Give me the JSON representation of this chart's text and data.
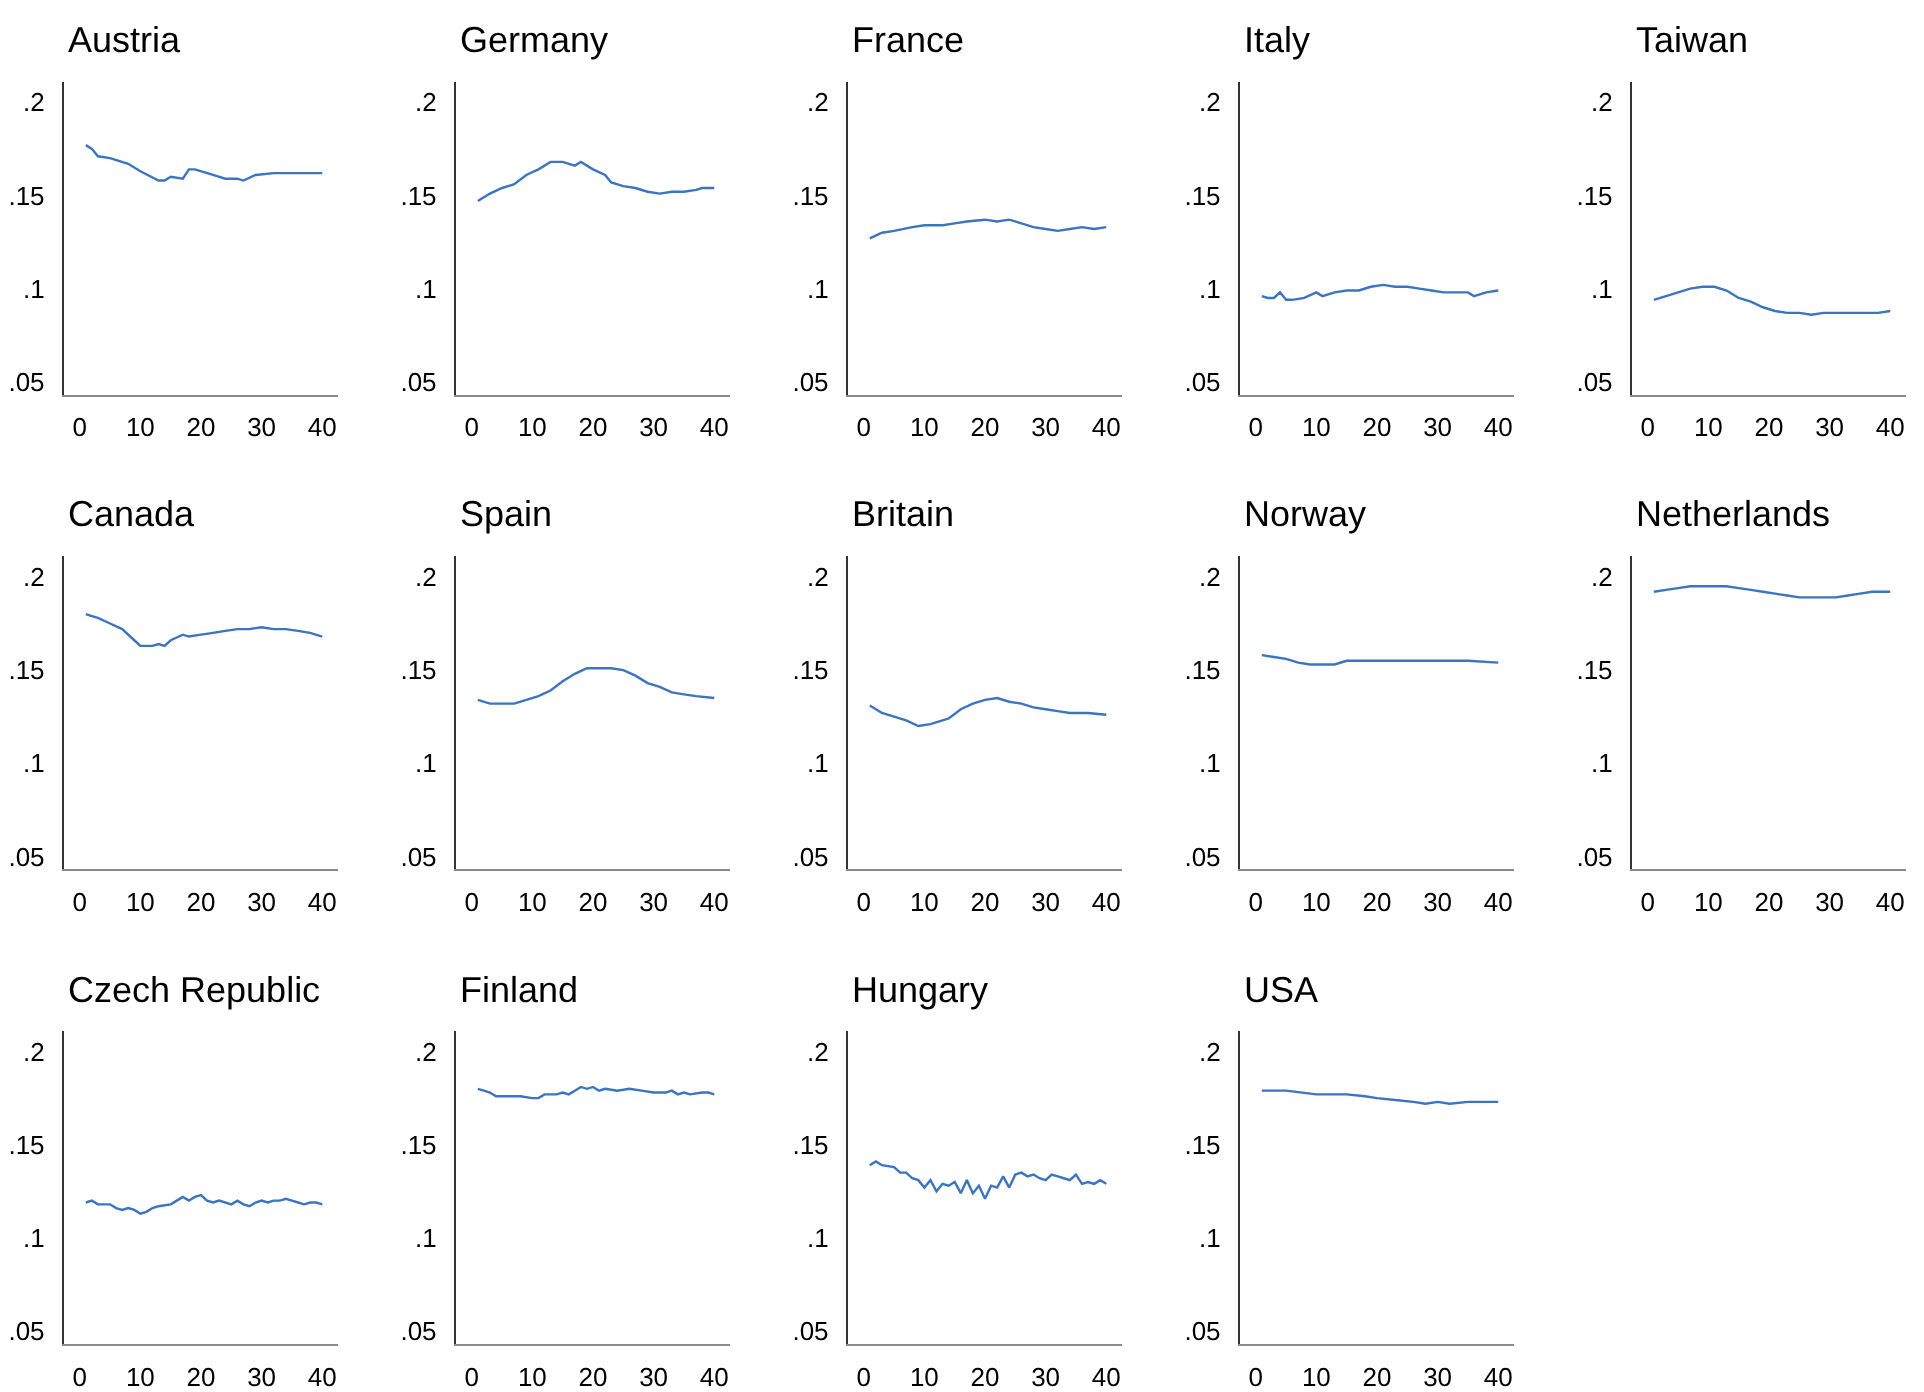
{
  "chart_data": [
    {
      "type": "line",
      "title": "Austria",
      "x": [
        1,
        2,
        3,
        5,
        8,
        10,
        13,
        14,
        15,
        17,
        18,
        19,
        22,
        24,
        26,
        27,
        29,
        32,
        35,
        38,
        40
      ],
      "values": [
        0.177,
        0.175,
        0.171,
        0.17,
        0.167,
        0.163,
        0.158,
        0.158,
        0.16,
        0.159,
        0.164,
        0.164,
        0.161,
        0.159,
        0.159,
        0.158,
        0.161,
        0.162,
        0.162,
        0.162,
        0.162
      ],
      "color": "#3b74c0",
      "xlim": [
        -2.6,
        42.6
      ],
      "ylim": [
        0.043,
        0.211
      ],
      "xticks": [
        0,
        10,
        20,
        30,
        40
      ],
      "yticks": [
        {
          "value": 0.05,
          "label": ".05"
        },
        {
          "value": 0.1,
          "label": ".1"
        },
        {
          "value": 0.15,
          "label": ".15"
        },
        {
          "value": 0.2,
          "label": ".2"
        }
      ]
    },
    {
      "type": "line",
      "title": "Germany",
      "x": [
        1,
        3,
        5,
        7,
        9,
        11,
        13,
        15,
        17,
        18,
        20,
        22,
        23,
        25,
        27,
        29,
        31,
        33,
        35,
        37,
        38,
        40
      ],
      "values": [
        0.147,
        0.151,
        0.154,
        0.156,
        0.161,
        0.164,
        0.168,
        0.168,
        0.166,
        0.168,
        0.164,
        0.161,
        0.157,
        0.155,
        0.154,
        0.152,
        0.151,
        0.152,
        0.152,
        0.153,
        0.154,
        0.154
      ],
      "color": "#3b74c0",
      "xlim": [
        -2.6,
        42.6
      ],
      "ylim": [
        0.043,
        0.211
      ],
      "xticks": [
        0,
        10,
        20,
        30,
        40
      ],
      "yticks": [
        {
          "value": 0.05,
          "label": ".05"
        },
        {
          "value": 0.1,
          "label": ".1"
        },
        {
          "value": 0.15,
          "label": ".15"
        },
        {
          "value": 0.2,
          "label": ".2"
        }
      ]
    },
    {
      "type": "line",
      "title": "France",
      "x": [
        1,
        3,
        5,
        8,
        10,
        13,
        15,
        17,
        20,
        22,
        24,
        26,
        28,
        30,
        32,
        34,
        36,
        38,
        40
      ],
      "values": [
        0.127,
        0.13,
        0.131,
        0.133,
        0.134,
        0.134,
        0.135,
        0.136,
        0.137,
        0.136,
        0.137,
        0.135,
        0.133,
        0.132,
        0.131,
        0.132,
        0.133,
        0.132,
        0.133
      ],
      "color": "#3b74c0",
      "xlim": [
        -2.6,
        42.6
      ],
      "ylim": [
        0.043,
        0.211
      ],
      "xticks": [
        0,
        10,
        20,
        30,
        40
      ],
      "yticks": [
        {
          "value": 0.05,
          "label": ".05"
        },
        {
          "value": 0.1,
          "label": ".1"
        },
        {
          "value": 0.15,
          "label": ".15"
        },
        {
          "value": 0.2,
          "label": ".2"
        }
      ]
    },
    {
      "type": "line",
      "title": "Italy",
      "x": [
        1,
        2,
        3,
        4,
        5,
        6,
        8,
        10,
        11,
        13,
        15,
        17,
        19,
        21,
        23,
        25,
        27,
        29,
        31,
        33,
        35,
        36,
        38,
        40
      ],
      "values": [
        0.096,
        0.095,
        0.095,
        0.098,
        0.094,
        0.094,
        0.095,
        0.098,
        0.096,
        0.098,
        0.099,
        0.099,
        0.101,
        0.102,
        0.101,
        0.101,
        0.1,
        0.099,
        0.098,
        0.098,
        0.098,
        0.096,
        0.098,
        0.099
      ],
      "color": "#3b74c0",
      "xlim": [
        -2.6,
        42.6
      ],
      "ylim": [
        0.043,
        0.211
      ],
      "xticks": [
        0,
        10,
        20,
        30,
        40
      ],
      "yticks": [
        {
          "value": 0.05,
          "label": ".05"
        },
        {
          "value": 0.1,
          "label": ".1"
        },
        {
          "value": 0.15,
          "label": ".15"
        },
        {
          "value": 0.2,
          "label": ".2"
        }
      ]
    },
    {
      "type": "line",
      "title": "Taiwan",
      "x": [
        1,
        3,
        5,
        7,
        9,
        11,
        13,
        15,
        17,
        19,
        21,
        23,
        25,
        27,
        29,
        31,
        33,
        35,
        37,
        38,
        40
      ],
      "values": [
        0.094,
        0.096,
        0.098,
        0.1,
        0.101,
        0.101,
        0.099,
        0.095,
        0.093,
        0.09,
        0.088,
        0.087,
        0.087,
        0.086,
        0.087,
        0.087,
        0.087,
        0.087,
        0.087,
        0.087,
        0.088
      ],
      "color": "#3b74c0",
      "xlim": [
        -2.6,
        42.6
      ],
      "ylim": [
        0.043,
        0.211
      ],
      "xticks": [
        0,
        10,
        20,
        30,
        40
      ],
      "yticks": [
        {
          "value": 0.05,
          "label": ".05"
        },
        {
          "value": 0.1,
          "label": ".1"
        },
        {
          "value": 0.15,
          "label": ".15"
        },
        {
          "value": 0.2,
          "label": ".2"
        }
      ]
    },
    {
      "type": "line",
      "title": "Canada",
      "x": [
        1,
        2,
        3,
        5,
        7,
        9,
        10,
        12,
        13,
        14,
        15,
        17,
        18,
        20,
        22,
        24,
        26,
        28,
        30,
        32,
        34,
        36,
        38,
        40
      ],
      "values": [
        0.18,
        0.179,
        0.178,
        0.175,
        0.172,
        0.166,
        0.163,
        0.163,
        0.164,
        0.163,
        0.166,
        0.169,
        0.168,
        0.169,
        0.17,
        0.171,
        0.172,
        0.172,
        0.173,
        0.172,
        0.172,
        0.171,
        0.17,
        0.168
      ],
      "color": "#3b74c0",
      "xlim": [
        -2.6,
        42.6
      ],
      "ylim": [
        0.043,
        0.211
      ],
      "xticks": [
        0,
        10,
        20,
        30,
        40
      ],
      "yticks": [
        {
          "value": 0.05,
          "label": ".05"
        },
        {
          "value": 0.1,
          "label": ".1"
        },
        {
          "value": 0.15,
          "label": ".15"
        },
        {
          "value": 0.2,
          "label": ".2"
        }
      ]
    },
    {
      "type": "line",
      "title": "Spain",
      "x": [
        1,
        3,
        5,
        7,
        9,
        11,
        13,
        15,
        17,
        19,
        21,
        23,
        25,
        27,
        29,
        31,
        33,
        35,
        37,
        40
      ],
      "values": [
        0.134,
        0.132,
        0.132,
        0.132,
        0.134,
        0.136,
        0.139,
        0.144,
        0.148,
        0.151,
        0.151,
        0.151,
        0.15,
        0.147,
        0.143,
        0.141,
        0.138,
        0.137,
        0.136,
        0.135
      ],
      "color": "#3b74c0",
      "xlim": [
        -2.6,
        42.6
      ],
      "ylim": [
        0.043,
        0.211
      ],
      "xticks": [
        0,
        10,
        20,
        30,
        40
      ],
      "yticks": [
        {
          "value": 0.05,
          "label": ".05"
        },
        {
          "value": 0.1,
          "label": ".1"
        },
        {
          "value": 0.15,
          "label": ".15"
        },
        {
          "value": 0.2,
          "label": ".2"
        }
      ]
    },
    {
      "type": "line",
      "title": "Britain",
      "x": [
        1,
        3,
        5,
        7,
        9,
        11,
        13,
        14,
        16,
        18,
        20,
        22,
        24,
        26,
        28,
        30,
        32,
        34,
        37,
        40
      ],
      "values": [
        0.131,
        0.127,
        0.125,
        0.123,
        0.12,
        0.121,
        0.123,
        0.124,
        0.129,
        0.132,
        0.134,
        0.135,
        0.133,
        0.132,
        0.13,
        0.129,
        0.128,
        0.127,
        0.127,
        0.126
      ],
      "color": "#3b74c0",
      "xlim": [
        -2.6,
        42.6
      ],
      "ylim": [
        0.043,
        0.211
      ],
      "xticks": [
        0,
        10,
        20,
        30,
        40
      ],
      "yticks": [
        {
          "value": 0.05,
          "label": ".05"
        },
        {
          "value": 0.1,
          "label": ".1"
        },
        {
          "value": 0.15,
          "label": ".15"
        },
        {
          "value": 0.2,
          "label": ".2"
        }
      ]
    },
    {
      "type": "line",
      "title": "Norway",
      "x": [
        1,
        3,
        5,
        7,
        9,
        11,
        13,
        15,
        17,
        20,
        25,
        30,
        35,
        40
      ],
      "values": [
        0.158,
        0.157,
        0.156,
        0.154,
        0.153,
        0.153,
        0.153,
        0.155,
        0.155,
        0.155,
        0.155,
        0.155,
        0.155,
        0.154
      ],
      "color": "#3b74c0",
      "xlim": [
        -2.6,
        42.6
      ],
      "ylim": [
        0.043,
        0.211
      ],
      "xticks": [
        0,
        10,
        20,
        30,
        40
      ],
      "yticks": [
        {
          "value": 0.05,
          "label": ".05"
        },
        {
          "value": 0.1,
          "label": ".1"
        },
        {
          "value": 0.15,
          "label": ".15"
        },
        {
          "value": 0.2,
          "label": ".2"
        }
      ]
    },
    {
      "type": "line",
      "title": "Netherlands",
      "x": [
        1,
        3,
        5,
        7,
        10,
        13,
        15,
        17,
        19,
        21,
        23,
        25,
        27,
        29,
        31,
        33,
        35,
        37,
        40
      ],
      "values": [
        0.192,
        0.193,
        0.194,
        0.195,
        0.195,
        0.195,
        0.194,
        0.193,
        0.192,
        0.191,
        0.19,
        0.189,
        0.189,
        0.189,
        0.189,
        0.19,
        0.191,
        0.192,
        0.192
      ],
      "color": "#3b74c0",
      "xlim": [
        -2.6,
        42.6
      ],
      "ylim": [
        0.043,
        0.211
      ],
      "xticks": [
        0,
        10,
        20,
        30,
        40
      ],
      "yticks": [
        {
          "value": 0.05,
          "label": ".05"
        },
        {
          "value": 0.1,
          "label": ".1"
        },
        {
          "value": 0.15,
          "label": ".15"
        },
        {
          "value": 0.2,
          "label": ".2"
        }
      ]
    },
    {
      "type": "line",
      "title": "Czech Republic",
      "x": [
        1,
        2,
        3,
        5,
        6,
        7,
        8,
        9,
        10,
        11,
        12,
        13,
        15,
        16,
        17,
        18,
        19,
        20,
        21,
        22,
        23,
        25,
        26,
        27,
        28,
        29,
        30,
        31,
        32,
        33,
        34,
        35,
        36,
        37,
        38,
        39,
        40
      ],
      "values": [
        0.119,
        0.12,
        0.118,
        0.118,
        0.116,
        0.115,
        0.116,
        0.115,
        0.113,
        0.114,
        0.116,
        0.117,
        0.118,
        0.12,
        0.122,
        0.12,
        0.122,
        0.123,
        0.12,
        0.119,
        0.12,
        0.118,
        0.12,
        0.118,
        0.117,
        0.119,
        0.12,
        0.119,
        0.12,
        0.12,
        0.121,
        0.12,
        0.119,
        0.118,
        0.119,
        0.119,
        0.118
      ],
      "color": "#3b74c0",
      "xlim": [
        -2.6,
        42.6
      ],
      "ylim": [
        0.043,
        0.211
      ],
      "xticks": [
        0,
        10,
        20,
        30,
        40
      ],
      "yticks": [
        {
          "value": 0.05,
          "label": ".05"
        },
        {
          "value": 0.1,
          "label": ".1"
        },
        {
          "value": 0.15,
          "label": ".15"
        },
        {
          "value": 0.2,
          "label": ".2"
        }
      ]
    },
    {
      "type": "line",
      "title": "Finland",
      "x": [
        1,
        2,
        3,
        4,
        6,
        8,
        10,
        11,
        12,
        14,
        15,
        16,
        17,
        18,
        19,
        20,
        21,
        22,
        24,
        26,
        28,
        30,
        32,
        33,
        34,
        35,
        36,
        38,
        39,
        40
      ],
      "values": [
        0.18,
        0.179,
        0.178,
        0.176,
        0.176,
        0.176,
        0.175,
        0.175,
        0.177,
        0.177,
        0.178,
        0.177,
        0.179,
        0.181,
        0.18,
        0.181,
        0.179,
        0.18,
        0.179,
        0.18,
        0.179,
        0.178,
        0.178,
        0.179,
        0.177,
        0.178,
        0.177,
        0.178,
        0.178,
        0.177
      ],
      "color": "#3b74c0",
      "xlim": [
        -2.6,
        42.6
      ],
      "ylim": [
        0.043,
        0.211
      ],
      "xticks": [
        0,
        10,
        20,
        30,
        40
      ],
      "yticks": [
        {
          "value": 0.05,
          "label": ".05"
        },
        {
          "value": 0.1,
          "label": ".1"
        },
        {
          "value": 0.15,
          "label": ".15"
        },
        {
          "value": 0.2,
          "label": ".2"
        }
      ]
    },
    {
      "type": "line",
      "title": "Hungary",
      "x": [
        1,
        2,
        3,
        5,
        6,
        7,
        8,
        9,
        10,
        11,
        12,
        13,
        14,
        15,
        16,
        17,
        18,
        19,
        20,
        21,
        22,
        23,
        24,
        25,
        26,
        27,
        28,
        29,
        30,
        31,
        32,
        33,
        34,
        35,
        36,
        37,
        38,
        39,
        40
      ],
      "values": [
        0.139,
        0.141,
        0.139,
        0.138,
        0.135,
        0.135,
        0.132,
        0.131,
        0.127,
        0.131,
        0.125,
        0.129,
        0.128,
        0.13,
        0.124,
        0.131,
        0.124,
        0.128,
        0.121,
        0.128,
        0.127,
        0.133,
        0.127,
        0.134,
        0.135,
        0.133,
        0.134,
        0.132,
        0.131,
        0.134,
        0.133,
        0.132,
        0.131,
        0.134,
        0.129,
        0.13,
        0.129,
        0.131,
        0.129
      ],
      "color": "#3b74c0",
      "xlim": [
        -2.6,
        42.6
      ],
      "ylim": [
        0.043,
        0.211
      ],
      "xticks": [
        0,
        10,
        20,
        30,
        40
      ],
      "yticks": [
        {
          "value": 0.05,
          "label": ".05"
        },
        {
          "value": 0.1,
          "label": ".1"
        },
        {
          "value": 0.15,
          "label": ".15"
        },
        {
          "value": 0.2,
          "label": ".2"
        }
      ]
    },
    {
      "type": "line",
      "title": "USA",
      "x": [
        1,
        5,
        10,
        15,
        18,
        20,
        23,
        26,
        28,
        30,
        32,
        35,
        40
      ],
      "values": [
        0.179,
        0.179,
        0.177,
        0.177,
        0.176,
        0.175,
        0.174,
        0.173,
        0.172,
        0.173,
        0.172,
        0.173,
        0.173
      ],
      "color": "#3b74c0",
      "xlim": [
        -2.6,
        42.6
      ],
      "ylim": [
        0.043,
        0.211
      ],
      "xticks": [
        0,
        10,
        20,
        30,
        40
      ],
      "yticks": [
        {
          "value": 0.05,
          "label": ".05"
        },
        {
          "value": 0.1,
          "label": ".1"
        },
        {
          "value": 0.15,
          "label": ".15"
        },
        {
          "value": 0.2,
          "label": ".2"
        }
      ]
    }
  ]
}
